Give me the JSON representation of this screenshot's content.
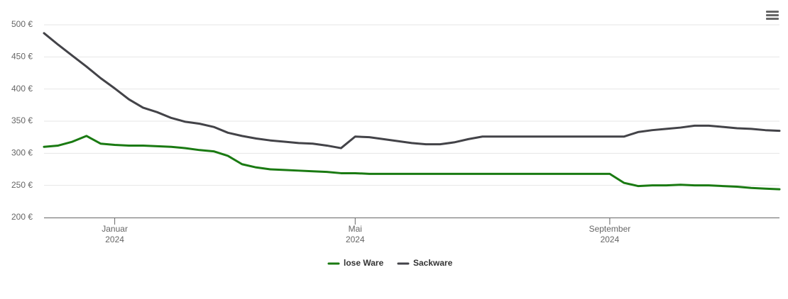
{
  "chart_data": {
    "type": "line",
    "categories": [
      null,
      null,
      null,
      null,
      null,
      "Januar 2024",
      null,
      null,
      null,
      null,
      null,
      null,
      null,
      null,
      null,
      null,
      null,
      null,
      null,
      null,
      null,
      null,
      "Mai 2024",
      null,
      null,
      null,
      null,
      null,
      null,
      null,
      null,
      null,
      null,
      null,
      null,
      null,
      null,
      null,
      null,
      null,
      "September 2024",
      null,
      null,
      null,
      null,
      null,
      null,
      null,
      null,
      null,
      null,
      null,
      null
    ],
    "series": [
      {
        "name": "lose Ware",
        "color": "#1a7a12",
        "values": [
          310,
          312,
          318,
          327,
          315,
          313,
          312,
          312,
          311,
          310,
          308,
          305,
          303,
          296,
          283,
          278,
          275,
          274,
          273,
          272,
          271,
          269,
          269,
          268,
          268,
          268,
          268,
          268,
          268,
          268,
          268,
          268,
          268,
          268,
          268,
          268,
          268,
          268,
          268,
          268,
          268,
          254,
          249,
          250,
          250,
          251,
          250,
          250,
          249,
          248,
          246,
          245,
          244
        ]
      },
      {
        "name": "Sackware",
        "color": "#434348",
        "values": [
          487,
          469,
          452,
          435,
          417,
          401,
          384,
          371,
          364,
          355,
          349,
          346,
          341,
          332,
          327,
          323,
          320,
          318,
          316,
          315,
          312,
          308,
          326,
          325,
          322,
          319,
          316,
          314,
          314,
          317,
          322,
          326,
          326,
          326,
          326,
          326,
          326,
          326,
          326,
          326,
          326,
          326,
          333,
          336,
          338,
          340,
          343,
          343,
          341,
          339,
          338,
          336,
          335
        ]
      }
    ],
    "ylim": [
      200,
      500
    ],
    "yticks": [
      {
        "value": 200,
        "label": "200 €"
      },
      {
        "value": 250,
        "label": "250 €"
      },
      {
        "value": 300,
        "label": "300 €"
      },
      {
        "value": 350,
        "label": "350 €"
      },
      {
        "value": 400,
        "label": "400 €"
      },
      {
        "value": 450,
        "label": "450 €"
      },
      {
        "value": 500,
        "label": "500 €"
      }
    ],
    "grid": true,
    "legend": "bottom"
  }
}
